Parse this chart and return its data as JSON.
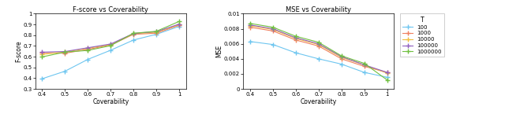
{
  "coverability": [
    0.4,
    0.5,
    0.6,
    0.7,
    0.8,
    0.9,
    1.0
  ],
  "fscore": {
    "100": [
      0.395,
      0.465,
      0.575,
      0.66,
      0.755,
      0.808,
      0.882
    ],
    "1000": [
      0.638,
      0.632,
      0.668,
      0.708,
      0.808,
      0.818,
      0.893
    ],
    "10000": [
      0.622,
      0.643,
      0.678,
      0.713,
      0.813,
      0.828,
      0.898
    ],
    "100000": [
      0.642,
      0.648,
      0.683,
      0.718,
      0.816,
      0.833,
      0.903
    ],
    "1000000": [
      0.598,
      0.643,
      0.658,
      0.703,
      0.818,
      0.836,
      0.928
    ]
  },
  "mse": {
    "100": [
      0.0063,
      0.0059,
      0.0048,
      0.004,
      0.0033,
      0.0022,
      0.00155
    ],
    "1000": [
      0.0082,
      0.0077,
      0.0065,
      0.0057,
      0.004,
      0.003,
      0.0022
    ],
    "10000": [
      0.0084,
      0.0079,
      0.0067,
      0.0059,
      0.0042,
      0.0032,
      0.0021
    ],
    "100000": [
      0.0085,
      0.008,
      0.0068,
      0.006,
      0.0043,
      0.0032,
      0.0022
    ],
    "1000000": [
      0.0087,
      0.0082,
      0.007,
      0.0062,
      0.0044,
      0.0034,
      0.0012
    ]
  },
  "colors": {
    "100": "#6ec6f0",
    "1000": "#f08060",
    "10000": "#f0c040",
    "100000": "#9060c0",
    "1000000": "#70c040"
  },
  "fscore_ylim": [
    0.3,
    1.0
  ],
  "fscore_yticks": [
    0.3,
    0.4,
    0.5,
    0.6,
    0.7,
    0.8,
    0.9,
    1.0
  ],
  "mse_ylim": [
    0,
    0.01
  ],
  "mse_yticks": [
    0,
    0.002,
    0.004,
    0.006,
    0.008,
    0.01
  ],
  "xlim": [
    0.37,
    1.03
  ],
  "xticks": [
    0.4,
    0.5,
    0.6,
    0.7,
    0.8,
    0.9,
    1.0
  ],
  "series_labels": [
    "100",
    "1000",
    "10000",
    "100000",
    "1000000"
  ],
  "title1": "F-score vs Coverability",
  "title2": "MSE vs Coverability",
  "xlabel": "Coverability",
  "ylabel1": "F-score",
  "ylabel2": "MSE",
  "legend_title": "T",
  "background": "#ffffff"
}
